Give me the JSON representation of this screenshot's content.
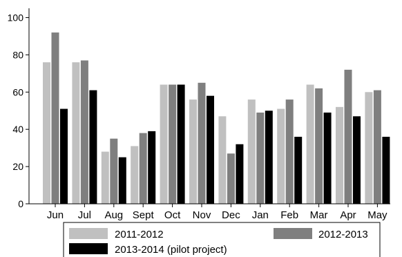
{
  "chart_data": {
    "type": "bar",
    "title": "",
    "xlabel": "",
    "ylabel": "",
    "categories": [
      "Jun",
      "Jul",
      "Aug",
      "Sept",
      "Oct",
      "Nov",
      "Dec",
      "Jan",
      "Feb",
      "Mar",
      "Apr",
      "May"
    ],
    "ylim": [
      0,
      105
    ],
    "yticks": [
      0,
      20,
      40,
      60,
      80,
      100
    ],
    "grid": false,
    "legend_position": "bottom",
    "series": [
      {
        "name": "2011-2012",
        "color": "#c0c0c0",
        "values": [
          76,
          76,
          28,
          31,
          64,
          56,
          47,
          56,
          51,
          64,
          52,
          60
        ]
      },
      {
        "name": "2012-2013",
        "color": "#7f7f7f",
        "values": [
          92,
          77,
          35,
          38,
          64,
          65,
          27,
          49,
          56,
          62,
          72,
          61
        ]
      },
      {
        "name": "2013-2014 (pilot project)",
        "color": "#000000",
        "values": [
          51,
          61,
          25,
          39,
          64,
          58,
          32,
          50,
          36,
          49,
          47,
          36
        ]
      }
    ]
  }
}
